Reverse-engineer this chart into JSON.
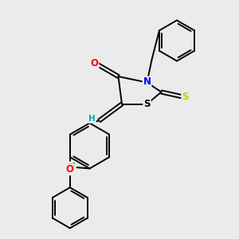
{
  "bg_color": "#ebebeb",
  "bond_color": "#000000",
  "bond_width": 1.4,
  "atom_colors": {
    "O": "#ff0000",
    "N": "#0000ff",
    "S_thioxo": "#cccc00",
    "S_ring": "#000000",
    "Cl": "#00aa00",
    "H": "#00aaaa",
    "C": "#000000"
  },
  "font_size_atom": 8.5
}
